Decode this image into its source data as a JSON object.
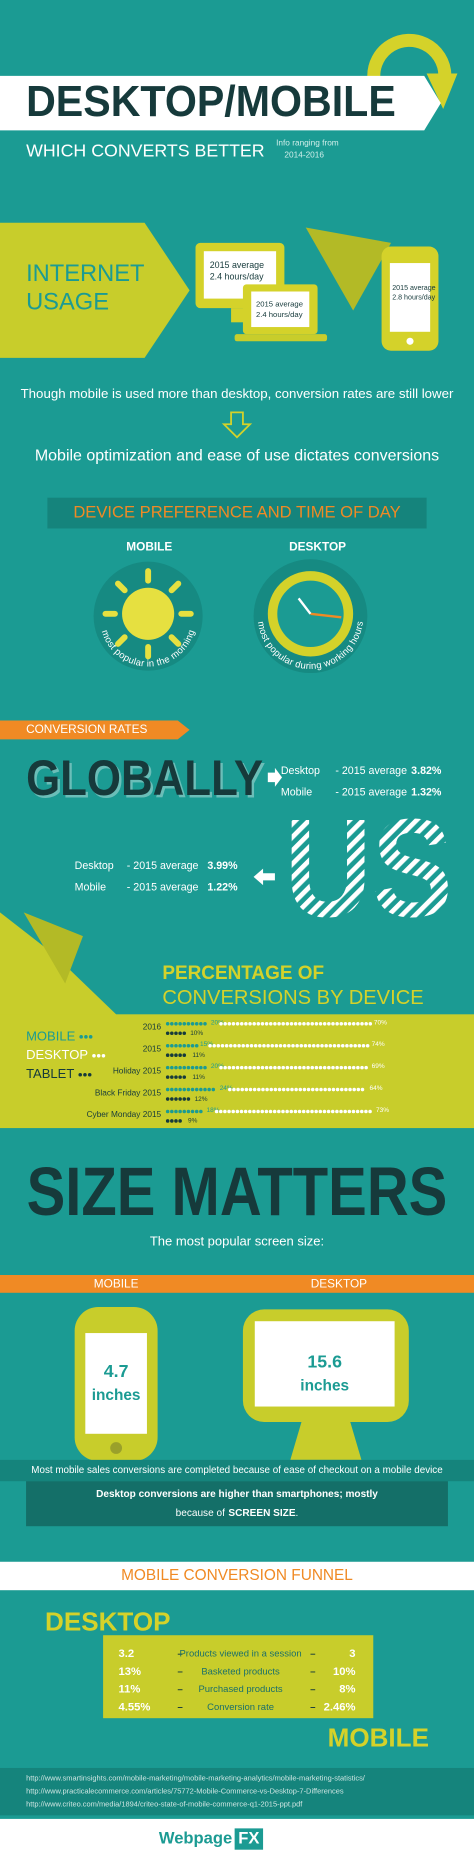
{
  "header": {
    "title": "DESKTOP/MOBILE",
    "subtitle": "WHICH CONVERTS BETTER",
    "note_lines": [
      "Info ranging from",
      "2014-2016"
    ]
  },
  "internet_usage": {
    "title_lines": [
      "INTERNET",
      "USAGE"
    ],
    "desktop": [
      "2015 average",
      "2.4 hours/day"
    ],
    "laptop": [
      "2015 average",
      "2.4 hours/day"
    ],
    "mobile": [
      "2015 average",
      "2.8 hours/day"
    ]
  },
  "statements": [
    "Though mobile is used more than desktop, conversion rates are still lower",
    "Mobile optimization and ease of use dictates conversions"
  ],
  "device_preference": {
    "title": "DEVICE PREFERENCE AND TIME OF DAY",
    "mobile": {
      "label": "MOBILE",
      "caption": "most popular in the morning"
    },
    "desktop": {
      "label": "DESKTOP",
      "caption": "most popular during working hours"
    }
  },
  "conversion_rates": {
    "tag": "CONVERSION RATES",
    "global": {
      "title": "GLOBALLY",
      "rows": [
        [
          "Desktop",
          "- 2015 average",
          "3.82%"
        ],
        [
          "Mobile",
          "- 2015 average",
          "1.32%"
        ]
      ]
    },
    "us": {
      "title": "US",
      "rows": [
        [
          "Desktop",
          "- 2015 average",
          "3.99%"
        ],
        [
          "Mobile",
          "- 2015 average",
          "1.22%"
        ]
      ]
    }
  },
  "percentage": {
    "title_lines": [
      "PERCENTAGE OF",
      "CONVERSIONS BY DEVICE"
    ],
    "categories": [
      "2016",
      "2015",
      "Holiday 2015",
      "Black Friday 2015",
      "Cyber Monday 2015"
    ],
    "series": [
      {
        "name": "MOBILE",
        "color": "#1b9b93",
        "values": [
          20,
          15,
          20,
          24,
          18
        ],
        "value_labels": [
          "20%",
          "15%",
          "20%",
          "24%",
          "18%"
        ]
      },
      {
        "name": "DESKTOP",
        "color": "#ffffff",
        "values": [
          70,
          74,
          69,
          64,
          73
        ],
        "value_labels": [
          "70%",
          "74%",
          "69%",
          "64%",
          "73%"
        ]
      },
      {
        "name": "TABLET",
        "color": "#163a3b",
        "values": [
          10,
          11,
          11,
          12,
          9
        ],
        "value_labels": [
          "10%",
          "11%",
          "11%",
          "12%",
          "9%"
        ]
      }
    ]
  },
  "size_matters": {
    "title": "SIZE MATTERS",
    "subtitle": "The most popular screen size:",
    "mobile": {
      "label": "MOBILE",
      "size_lines": [
        "4.7",
        "inches"
      ]
    },
    "desktop": {
      "label": "DESKTOP",
      "size_lines": [
        "15.6",
        "inches"
      ]
    },
    "note": "Most mobile sales conversions are completed because of ease of checkout on a mobile device",
    "conclusion": {
      "line1": "Desktop conversions are higher than smartphones; mostly",
      "line2": [
        "because of",
        "SCREEN SIZE",
        "."
      ]
    }
  },
  "funnel": {
    "title": "MOBILE CONVERSION FUNNEL",
    "desktop_label": "DESKTOP",
    "mobile_label": "MOBILE",
    "rows": [
      [
        "3.2",
        "Products viewed in a session",
        "3"
      ],
      [
        "13%",
        "Basketed products",
        "10%"
      ],
      [
        "11%",
        "Purchased products",
        "8%"
      ],
      [
        "4.55%",
        "Conversion rate",
        "2.46%"
      ]
    ]
  },
  "sources": [
    "http://www.smartinsights.com/mobile-marketing/mobile-marketing-analytics/mobile-marketing-statistics/",
    "http://www.practicalecommerce.com/articles/75772-Mobile-Commerce-vs-Desktop-7-Differences",
    "http://www.criteo.com/media/1894/criteo-state-of-mobile-commerce-q1-2015-ppt.pdf"
  ],
  "footer": {
    "brand": [
      "Webpage",
      "FX"
    ]
  }
}
